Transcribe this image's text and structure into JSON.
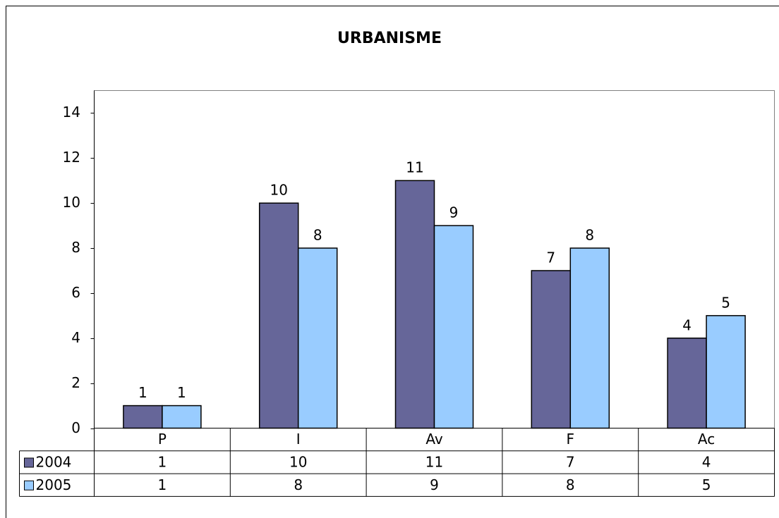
{
  "chart_data": {
    "type": "bar",
    "title": "URBANISME",
    "categories": [
      "P",
      "I",
      "Av",
      "F",
      "Ac"
    ],
    "series": [
      {
        "name": "2004",
        "color": "#666699",
        "values": [
          1,
          10,
          11,
          7,
          4
        ]
      },
      {
        "name": "2005",
        "color": "#99ccff",
        "values": [
          1,
          8,
          9,
          8,
          5
        ]
      }
    ],
    "ylim": [
      0,
      15
    ],
    "yticks": [
      0,
      2,
      4,
      6,
      8,
      10,
      12,
      14
    ],
    "grid": false
  }
}
